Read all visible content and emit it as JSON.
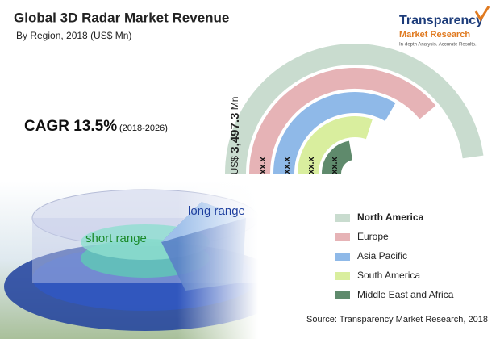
{
  "header": {
    "title": "Global 3D Radar Market Revenue",
    "subtitle": "By Region, 2018 (US$ Mn)"
  },
  "logo": {
    "name": "Transparency",
    "name2": "Market Research",
    "tagline": "In-depth Analysis. Accurate Results."
  },
  "cagr": {
    "label": "CAGR 13.5%",
    "period": "(2018-2026)"
  },
  "total": {
    "currency": "US$",
    "amount": "3,497.3",
    "unit": "Mn"
  },
  "ring_labels": [
    "xx.x",
    "xx.x",
    "xx.x",
    "xx.x"
  ],
  "legend": [
    {
      "name": "North America",
      "color": "#c9dccf"
    },
    {
      "name": "Europe",
      "color": "#e6b3b6"
    },
    {
      "name": "Asia Pacific",
      "color": "#8fb9e8"
    },
    {
      "name": "South America",
      "color": "#d9ee9e"
    },
    {
      "name": "Middle East and Africa",
      "color": "#5f8a6c"
    }
  ],
  "radar": {
    "long": "long range",
    "short": "short range"
  },
  "source": "Source: Transparency Market Research, 2018"
}
